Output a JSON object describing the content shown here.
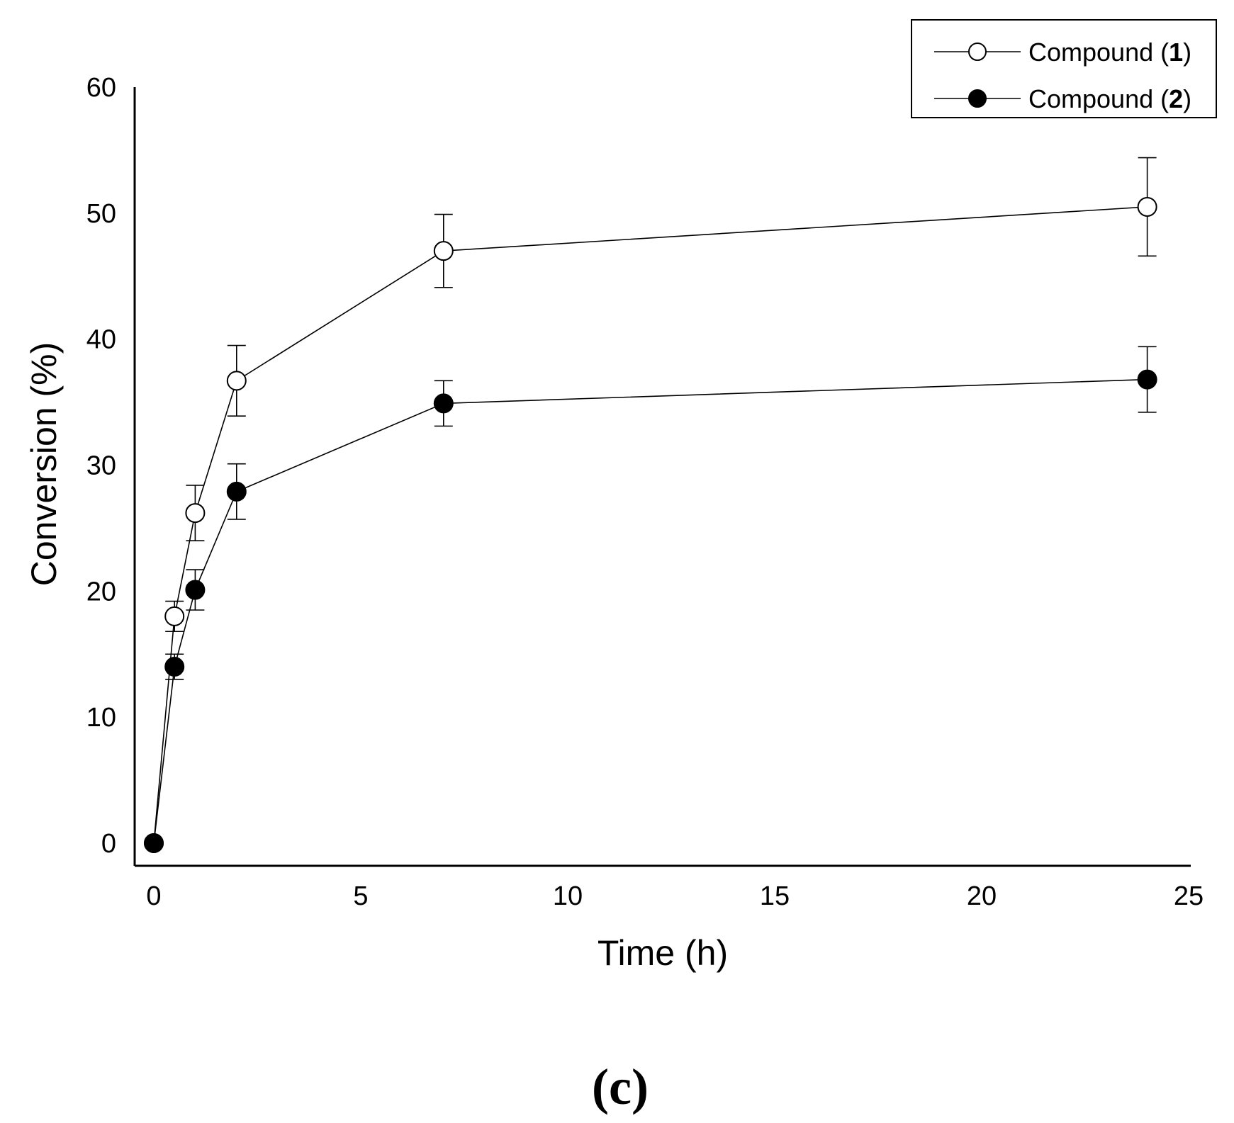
{
  "chart_data": {
    "type": "line",
    "title": "",
    "xlabel": "Time (h)",
    "ylabel": "Conversion (%)",
    "xlim": [
      0,
      25
    ],
    "ylim": [
      0,
      60
    ],
    "xticks": [
      0,
      5,
      10,
      15,
      20,
      25
    ],
    "yticks": [
      0,
      10,
      20,
      30,
      40,
      50,
      60
    ],
    "grid": false,
    "legend_position": "top-right",
    "panel_label": "(c)",
    "series": [
      {
        "name": "Compound (1)",
        "legend_prefix": "Compound (",
        "legend_bold": "1",
        "legend_suffix": ")",
        "marker": "open-circle",
        "x": [
          0,
          0.5,
          1,
          2,
          7,
          24
        ],
        "y": [
          0,
          18,
          26.2,
          36.7,
          47,
          50.5
        ],
        "error": [
          0,
          1.2,
          2.2,
          2.8,
          2.9,
          3.9
        ]
      },
      {
        "name": "Compound (2)",
        "legend_prefix": "Compound (",
        "legend_bold": "2",
        "legend_suffix": ")",
        "marker": "filled-circle",
        "x": [
          0,
          0.5,
          1,
          2,
          7,
          24
        ],
        "y": [
          0,
          14,
          20.1,
          27.9,
          34.9,
          36.8
        ],
        "error": [
          0,
          1.0,
          1.6,
          2.2,
          1.8,
          2.6
        ]
      }
    ]
  }
}
